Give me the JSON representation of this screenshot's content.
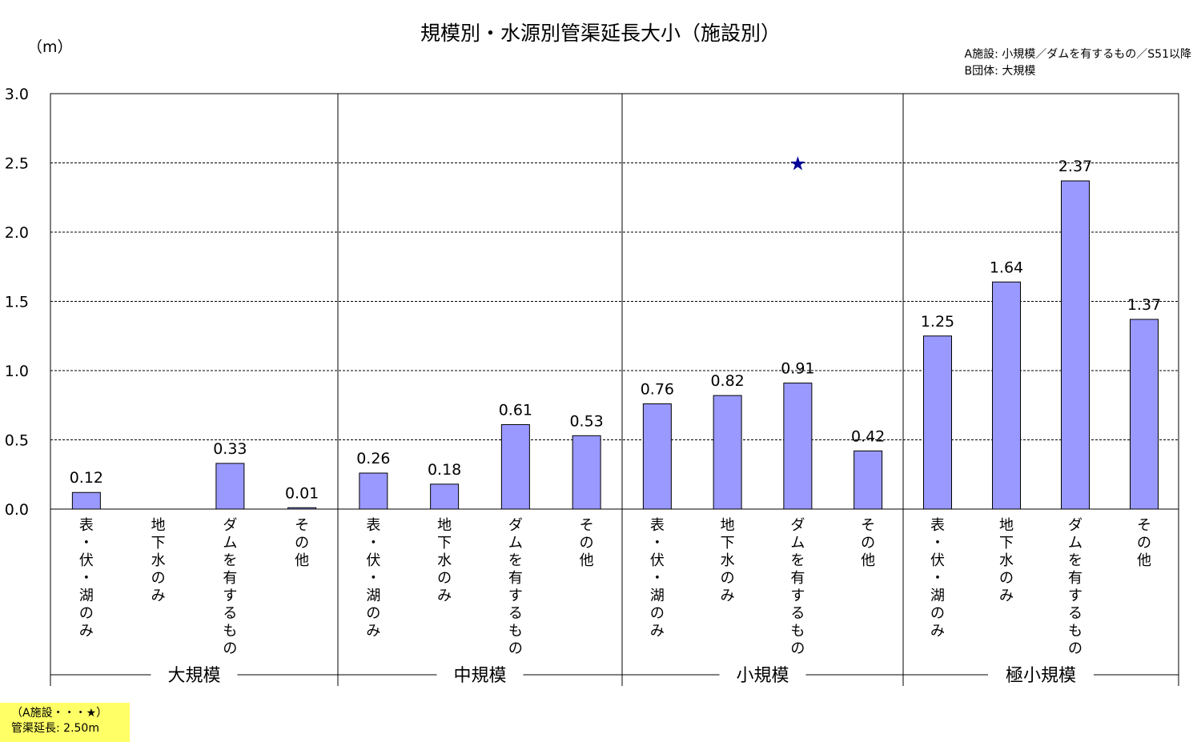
{
  "title": "規模別・水源別管渠延長大小（施設別）",
  "unit": "（m）",
  "legend": {
    "line1": "A施設: 小規模／ダムを有するもの／S51以降",
    "line2": "B団体: 大規模"
  },
  "note": {
    "line1": "（A施設・・・★）",
    "line2": "管渠延長: 2.50m"
  },
  "colors": {
    "bar": "#9999ff",
    "star": "#000099"
  },
  "chart_data": {
    "type": "bar",
    "ylim": [
      0,
      3.0
    ],
    "yticks": [
      "0.0",
      "0.5",
      "1.0",
      "1.5",
      "2.0",
      "2.5",
      "3.0"
    ],
    "grid": true,
    "groups": [
      {
        "name": "大規模",
        "categories": [
          "表・伏・湖のみ",
          "地下水のみ",
          "ダムを有するもの",
          "その他"
        ],
        "values": [
          0.12,
          null,
          0.33,
          0.01
        ],
        "labels": [
          "0.12",
          "",
          "0.33",
          "0.01"
        ]
      },
      {
        "name": "中規模",
        "categories": [
          "表・伏・湖のみ",
          "地下水のみ",
          "ダムを有するもの",
          "その他"
        ],
        "values": [
          0.26,
          0.18,
          0.61,
          0.53
        ],
        "labels": [
          "0.26",
          "0.18",
          "0.61",
          "0.53"
        ]
      },
      {
        "name": "小規模",
        "categories": [
          "表・伏・湖のみ",
          "地下水のみ",
          "ダムを有するもの",
          "その他"
        ],
        "values": [
          0.76,
          0.82,
          0.91,
          0.42
        ],
        "labels": [
          "0.76",
          "0.82",
          "0.91",
          "0.42"
        ]
      },
      {
        "name": "極小規模",
        "categories": [
          "表・伏・湖のみ",
          "地下水のみ",
          "ダムを有するもの",
          "その他"
        ],
        "values": [
          1.25,
          1.64,
          2.37,
          1.37
        ],
        "labels": [
          "1.25",
          "1.64",
          "2.37",
          "1.37"
        ]
      }
    ],
    "marker": {
      "symbol": "★",
      "group": 2,
      "category": 2,
      "value": 2.5
    }
  }
}
